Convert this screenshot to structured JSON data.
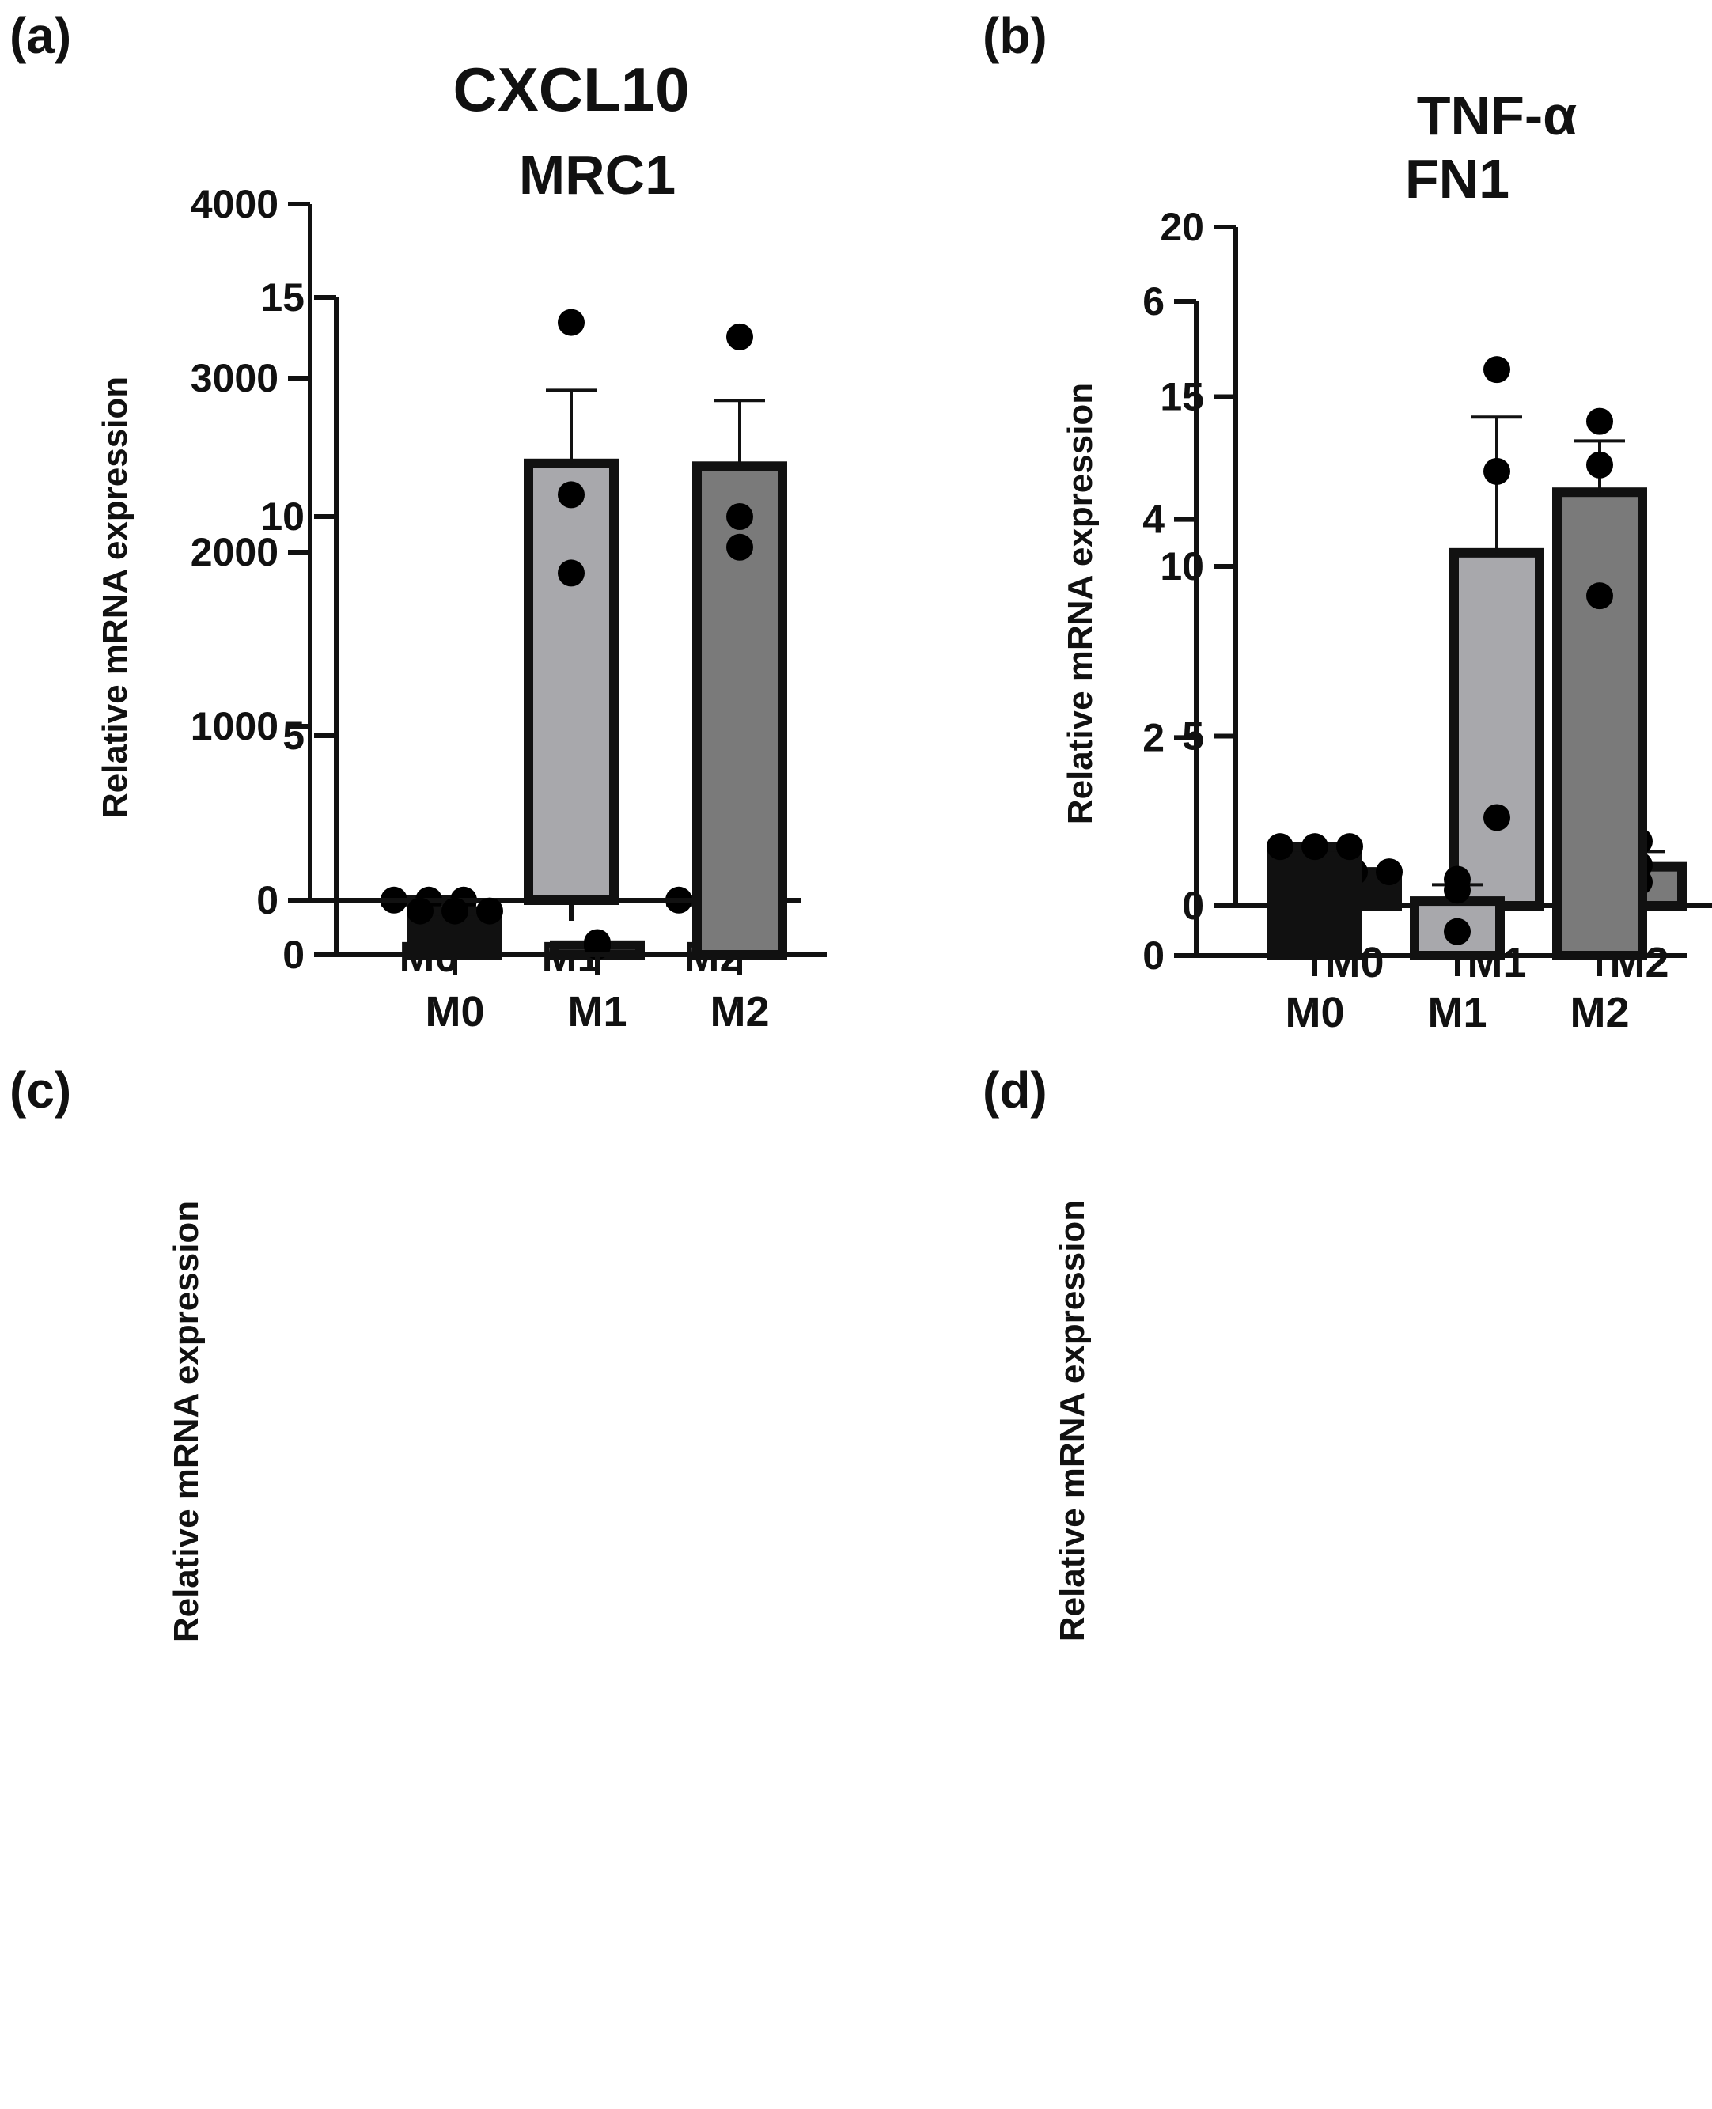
{
  "chart_data": [
    {
      "type": "bar",
      "panel": "(a)",
      "title": "CXCL10",
      "ylabel": "Relative mRNA expression",
      "xlabel": "",
      "categories": [
        "M0",
        "M1",
        "M2"
      ],
      "values": [
        1,
        2510,
        1
      ],
      "errors": [
        0,
        420,
        0
      ],
      "points": [
        [
          1,
          1,
          1
        ],
        [
          3320,
          2330,
          1880
        ],
        [
          1,
          1,
          1
        ]
      ],
      "bar_colors": [
        "#111111",
        "#a8a8ac",
        "#7a7a7a"
      ],
      "ylim": [
        0,
        4000
      ],
      "yticks": [
        0,
        1000,
        2000,
        3000,
        4000
      ],
      "ytick_labels": [
        "0",
        "1000",
        "2000",
        "3000",
        "4000"
      ]
    },
    {
      "type": "bar",
      "panel": "(b)",
      "title": "TNF-α",
      "ylabel": "Relative mRNA expression",
      "xlabel": "",
      "categories": [
        "M0",
        "M1",
        "M2"
      ],
      "values": [
        1,
        10.4,
        1.15
      ],
      "errors": [
        0,
        4.0,
        0.45
      ],
      "points": [
        [
          1,
          1,
          1
        ],
        [
          15.8,
          12.8,
          2.6
        ],
        [
          1.9,
          1.2,
          0.7
        ]
      ],
      "bar_colors": [
        "#111111",
        "#a8a8ac",
        "#7a7a7a"
      ],
      "ylim": [
        0,
        20
      ],
      "yticks": [
        0,
        5,
        10,
        15,
        20
      ],
      "ytick_labels": [
        "0",
        "5",
        "10",
        "15",
        "20"
      ]
    },
    {
      "type": "bar",
      "panel": "(c)",
      "title": "MRC1",
      "ylabel": "Relative mRNA expression",
      "xlabel": "",
      "categories": [
        "M0",
        "M1",
        "M2"
      ],
      "values": [
        1,
        0.22,
        11.15
      ],
      "errors": [
        0,
        0.05,
        1.5
      ],
      "points": [
        [
          1,
          1,
          1
        ],
        [
          0.2,
          0.28,
          0.2
        ],
        [
          14.1,
          10.0,
          9.3
        ]
      ],
      "bar_colors": [
        "#111111",
        "#a8a8ac",
        "#7a7a7a"
      ],
      "ylim": [
        0,
        15
      ],
      "yticks": [
        0,
        5,
        10,
        15
      ],
      "ytick_labels": [
        "0",
        "5",
        "10",
        "15"
      ]
    },
    {
      "type": "bar",
      "panel": "(d)",
      "title": "FN1",
      "ylabel": "Relative mRNA expression",
      "xlabel": "",
      "categories": [
        "M0",
        "M1",
        "M2"
      ],
      "values": [
        1,
        0.5,
        4.25
      ],
      "errors": [
        0,
        0.15,
        0.47
      ],
      "points": [
        [
          1,
          1,
          1
        ],
        [
          0.7,
          0.6,
          0.22
        ],
        [
          4.9,
          4.5,
          3.3
        ]
      ],
      "bar_colors": [
        "#111111",
        "#a8a8ac",
        "#7a7a7a"
      ],
      "ylim": [
        0,
        6
      ],
      "yticks": [
        0,
        2,
        4,
        6
      ],
      "ytick_labels": [
        "0",
        "2",
        "4",
        "6"
      ]
    }
  ]
}
